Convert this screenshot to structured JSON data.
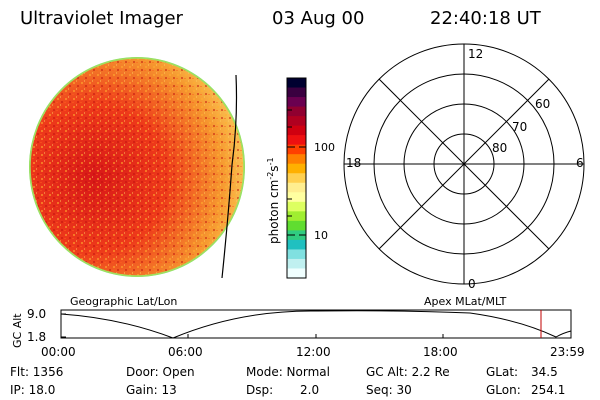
{
  "header": {
    "title": "Ultraviolet Imager",
    "date": "03 Aug 00",
    "time": "22:40:18 UT"
  },
  "colorbar": {
    "unit_prefix": "photon cm",
    "unit_sup1": "-2",
    "unit_mid": "s",
    "unit_sup2": "-1",
    "ticks": [
      "100",
      "10"
    ],
    "colors": [
      "#000030",
      "#3a0040",
      "#6a0050",
      "#900030",
      "#b00020",
      "#d00010",
      "#ee1010",
      "#ff4000",
      "#ff8000",
      "#ffb000",
      "#ffd050",
      "#ffee90",
      "#ffffa0",
      "#ddff60",
      "#a0ee30",
      "#60dd30",
      "#30cc80",
      "#20c0c0",
      "#80e0e0",
      "#c0f0f0",
      "#f0ffff"
    ]
  },
  "polar": {
    "mlt_labels": {
      "top": "12",
      "left": "18",
      "right": "6",
      "bottom": "0"
    },
    "lat_labels": [
      "60",
      "70",
      "80"
    ]
  },
  "map_labels": {
    "left": "Geographic Lat/Lon",
    "right": "Apex MLat/MLT"
  },
  "altitude_plot": {
    "ylabel": "GC Alt",
    "yticks": [
      "9.0",
      "1.8"
    ],
    "xticks": [
      "00:00",
      "06:00",
      "12:00",
      "18:00",
      "23:59"
    ]
  },
  "info": {
    "flt": "Flt: 1356",
    "ip": "IP: 18.0",
    "door": "Door: Open",
    "gain": "Gain: 13",
    "mode": "Mode: Normal",
    "dsp": "Dsp:",
    "dsp_val": "2.0",
    "gcalt": "GC Alt: 2.2 Re",
    "seq": "Seq: 30",
    "glat": "GLat:",
    "glat_val": "34.5",
    "glon": "GLon:",
    "glon_val": "254.1"
  }
}
